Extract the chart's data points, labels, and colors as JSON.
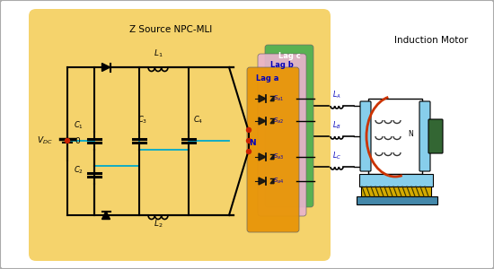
{
  "fig_bg": "#ffffff",
  "outer_bg": "#e8e8e8",
  "yellow_bg": "#f5d060",
  "green_panel": "#4caf50",
  "pink_panel": "#e8b4cc",
  "orange_panel": "#f0a020",
  "title_z": "Z Source NPC-MLI",
  "title_motor": "Induction Motor",
  "lag_a": "Lag a",
  "lag_b": "Lag b",
  "lag_c": "Lag c",
  "motor_body_color": "#87ceeb",
  "motor_coil_color": "#333333",
  "line_color": "#000000",
  "cyan_line": "#00aacc",
  "blue_text": "#0000bb",
  "red_dot": "#cc2200",
  "green_dark": "#336633",
  "motor_base_yellow": "#d4a017",
  "motor_base_blue": "#4488aa"
}
